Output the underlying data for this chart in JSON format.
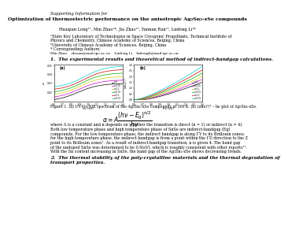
{
  "title_supporting": "Supporting Information for",
  "title_main": "Optimization of thermoelectric performance on the anisotropic Ag₂Sn₂-xSe compounds",
  "authors": "Huaqian Leng¹², Min Zhao¹*, Jia Zhao¹², Yannan Ran¹², Linfeng Li¹*",
  "affil1": "¹State Key Laboratory of Technologies in Space Cryogenic Propellants, Technical Institute of Physics and Chemistry, Chinese Academy of Sciences, Beijing, China",
  "affil2": "²University of Chinese Academy of Sciences, Beijing, China",
  "corr": "* Corresponding Authors:",
  "corr_detail": "Min Zhao    zhaom@mail.ipc.ac.cn    Linfeng Li    linlengli@mail.ipc.ac.cn",
  "section1": "1.  The experimental results and theoretical method of indirect-bandgap calculations.",
  "fig_caption": "Figure 1. (a) UV-Vis-NIR spectrum of the Ag₂Sn₂-xSe compounds at 300 K. (b) (ahν)⁴/³ - hν plot of Ag₂Sn₂-xSe.",
  "section2_line1": "2.  The thermal stability of the poly-crystalline materials and the thermal degradation of",
  "section2_line2": "transport properties.",
  "colors_a": [
    "black",
    "#cc00cc",
    "#cccc00",
    "#00aa00",
    "#cc0000",
    "#00cccc"
  ],
  "colors_b": [
    "black",
    "#cc00cc",
    "#cccc00",
    "#00aa00",
    "#cc0000",
    "#00cccc"
  ],
  "legend_labels": [
    "x=0",
    "x=0.05",
    "x=0.1",
    "x=0.15",
    "x=0.2",
    "x=0.25"
  ],
  "background_color": "#ffffff",
  "fs_tiny": 3.8,
  "fs_body": 3.5,
  "fs_section": 4.2,
  "fs_title": 4.5,
  "fs_supporting": 3.8
}
